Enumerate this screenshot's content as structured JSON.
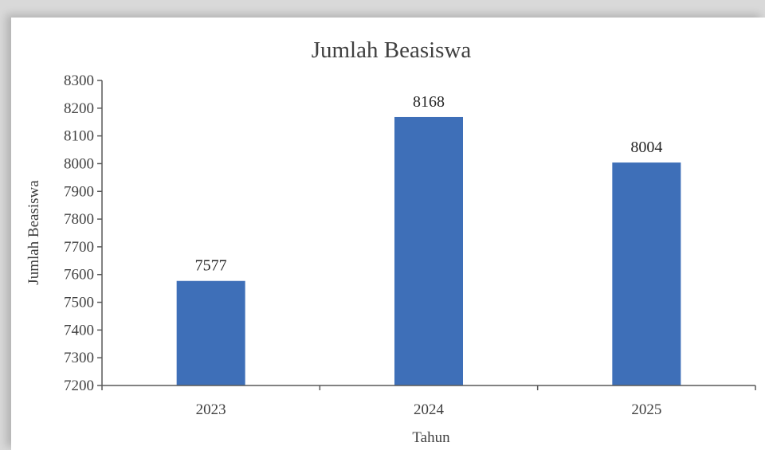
{
  "chart_data": {
    "type": "bar",
    "title": "Jumlah Beasiswa",
    "xlabel": "Tahun",
    "ylabel": "Jumlah Beasiswa",
    "categories": [
      "2023",
      "2024",
      "2025"
    ],
    "values": [
      7577,
      8168,
      8004
    ],
    "data_labels": [
      "7577",
      "8168",
      "8004"
    ],
    "ylim": [
      7200,
      8300
    ],
    "y_ticks": [
      7200,
      7300,
      7400,
      7500,
      7600,
      7700,
      7800,
      7900,
      8000,
      8100,
      8200,
      8300
    ],
    "grid": false,
    "legend": "none",
    "bar_color": "#3e6fb8",
    "axis_color": "#595959"
  }
}
